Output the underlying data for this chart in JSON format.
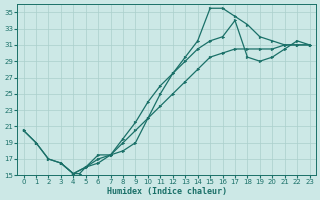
{
  "xlabel": "Humidex (Indice chaleur)",
  "bg_color": "#cce8e6",
  "grid_color": "#aacfcc",
  "line_color": "#1a7068",
  "xlim": [
    -0.5,
    23.5
  ],
  "ylim": [
    15,
    36
  ],
  "xticks": [
    0,
    1,
    2,
    3,
    4,
    5,
    6,
    7,
    8,
    9,
    10,
    11,
    12,
    13,
    14,
    15,
    16,
    17,
    18,
    19,
    20,
    21,
    22,
    23
  ],
  "yticks": [
    15,
    17,
    19,
    21,
    23,
    25,
    27,
    29,
    31,
    33,
    35
  ],
  "line1_x": [
    0,
    1,
    2,
    3,
    4,
    5,
    6,
    7,
    8,
    9,
    10,
    11,
    12,
    13,
    14,
    15,
    16,
    17,
    18,
    19,
    20,
    21,
    22,
    23
  ],
  "line1_y": [
    20.5,
    19.0,
    17.0,
    16.5,
    15.2,
    16.0,
    16.5,
    17.5,
    19.0,
    20.5,
    22.0,
    23.5,
    25.0,
    26.5,
    28.0,
    29.5,
    30.0,
    30.5,
    30.5,
    30.5,
    30.5,
    31.0,
    31.0,
    31.0
  ],
  "line2_x": [
    0,
    1,
    2,
    3,
    4,
    4.5,
    5,
    6,
    7,
    8,
    9,
    10,
    11,
    12,
    13,
    14,
    15,
    16,
    17,
    18,
    19,
    20,
    21,
    22,
    23
  ],
  "line2_y": [
    20.5,
    19.0,
    17.0,
    16.5,
    15.2,
    15.2,
    16.0,
    17.0,
    17.5,
    18.0,
    19.0,
    22.0,
    25.0,
    27.5,
    29.5,
    31.5,
    35.5,
    35.5,
    34.5,
    33.5,
    32.0,
    31.5,
    31.0,
    31.0,
    31.0
  ],
  "line3_x": [
    3,
    4,
    5,
    6,
    7,
    8,
    9,
    10,
    11,
    12,
    13,
    14,
    15,
    16,
    17,
    18,
    19,
    20,
    21,
    22,
    23
  ],
  "line3_y": [
    16.5,
    15.2,
    16.0,
    17.5,
    17.5,
    19.5,
    21.5,
    24.0,
    26.0,
    27.5,
    29.0,
    30.5,
    31.5,
    32.0,
    34.0,
    29.5,
    29.0,
    29.5,
    30.5,
    31.5,
    31.0
  ],
  "marker_size": 2.0,
  "line_width": 0.9,
  "tick_fontsize": 5.0,
  "xlabel_fontsize": 6.0
}
